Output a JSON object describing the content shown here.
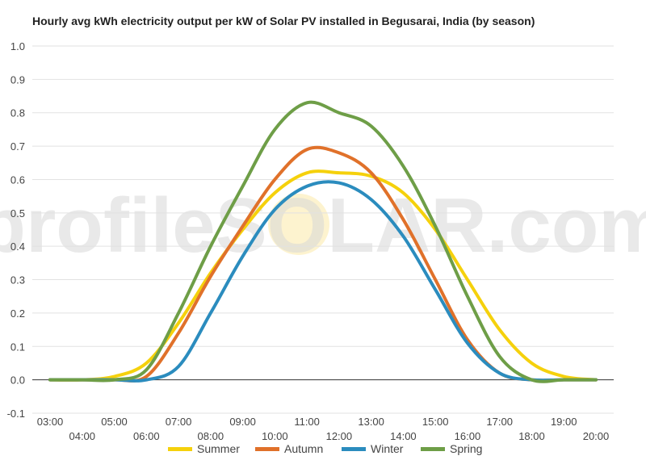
{
  "chart_data": {
    "type": "line",
    "title": "Hourly avg kWh electricity output per kW of Solar PV installed in Begusarai, India (by season)",
    "watermark": "profileSOLAR.com",
    "ylim": [
      -0.1,
      1.0
    ],
    "yticks": [
      "-0.1",
      "0.0",
      "0.1",
      "0.2",
      "0.3",
      "0.4",
      "0.5",
      "0.6",
      "0.7",
      "0.8",
      "0.9",
      "1.0"
    ],
    "ytick_values": [
      -0.1,
      0.0,
      0.1,
      0.2,
      0.3,
      0.4,
      0.5,
      0.6,
      0.7,
      0.8,
      0.9,
      1.0
    ],
    "x": [
      "03:00",
      "04:00",
      "05:00",
      "06:00",
      "07:00",
      "08:00",
      "09:00",
      "10:00",
      "11:00",
      "12:00",
      "13:00",
      "14:00",
      "15:00",
      "16:00",
      "17:00",
      "18:00",
      "19:00",
      "20:00"
    ],
    "grid": true,
    "legend_position": "bottom",
    "series": [
      {
        "name": "Summer",
        "color": "#F5D10C",
        "values": [
          0.0,
          0.0,
          0.01,
          0.05,
          0.17,
          0.32,
          0.45,
          0.56,
          0.62,
          0.62,
          0.61,
          0.56,
          0.45,
          0.3,
          0.15,
          0.05,
          0.01,
          0.0
        ]
      },
      {
        "name": "Autumn",
        "color": "#E0712A",
        "values": [
          0.0,
          0.0,
          0.0,
          0.01,
          0.14,
          0.31,
          0.46,
          0.6,
          0.69,
          0.68,
          0.62,
          0.48,
          0.3,
          0.12,
          0.02,
          0.0,
          0.0,
          0.0
        ]
      },
      {
        "name": "Winter",
        "color": "#2B8CBE",
        "values": [
          0.0,
          0.0,
          0.0,
          0.0,
          0.04,
          0.2,
          0.37,
          0.51,
          0.58,
          0.59,
          0.54,
          0.43,
          0.27,
          0.11,
          0.02,
          0.0,
          0.0,
          0.0
        ]
      },
      {
        "name": "Spring",
        "color": "#6E9E47",
        "values": [
          0.0,
          0.0,
          0.0,
          0.03,
          0.2,
          0.4,
          0.58,
          0.75,
          0.83,
          0.8,
          0.76,
          0.64,
          0.46,
          0.25,
          0.07,
          0.0,
          0.0,
          0.0
        ]
      }
    ]
  }
}
